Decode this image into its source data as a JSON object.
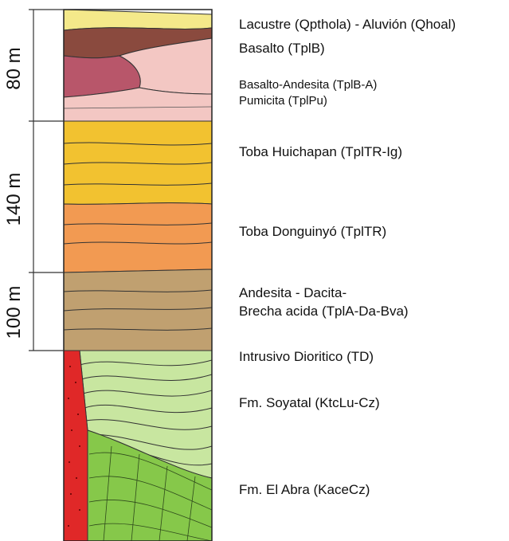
{
  "colors": {
    "lacustre": "#f4e98a",
    "basalto": "#8a4a3e",
    "basalto_andesita": "#b8566a",
    "pumicita": "#f3c7c3",
    "toba_huichapan": "#f2c230",
    "toba_donguinyo": "#f29a52",
    "andesita_brecha": "#c0a070",
    "intrusivo": "#e02828",
    "soyatal": "#c8e6a0",
    "el_abra": "#86c84a"
  },
  "scale": [
    {
      "label": "80 m",
      "thickness_m": 80
    },
    {
      "label": "140 m",
      "thickness_m": 140
    },
    {
      "label": "100 m",
      "thickness_m": 100
    }
  ],
  "units": [
    {
      "id": "lacustre",
      "label": "Lacustre (Qpthola) - Aluvión (Qhoal)"
    },
    {
      "id": "basalto",
      "label": "Basalto (TplB)"
    },
    {
      "id": "basalto_andesita",
      "label": "Basalto-Andesita (TplB-A)"
    },
    {
      "id": "pumicita",
      "label": "Pumicita (TplPu)"
    },
    {
      "id": "toba_huichapan",
      "label": "Toba Huichapan (TplTR-Ig)"
    },
    {
      "id": "toba_donguinyo",
      "label": "Toba Donguinyó (TplTR)"
    },
    {
      "id": "andesita_1",
      "label": "Andesita - Dacita-"
    },
    {
      "id": "andesita_2",
      "label": "Brecha acida (TplA-Da-Bva)"
    },
    {
      "id": "intrusivo",
      "label": "Intrusivo Dioritico (TD)"
    },
    {
      "id": "soyatal",
      "label": "Fm. Soyatal (KtcLu-Cz)"
    },
    {
      "id": "el_abra",
      "label": "Fm. El Abra (KaceCz)"
    }
  ]
}
